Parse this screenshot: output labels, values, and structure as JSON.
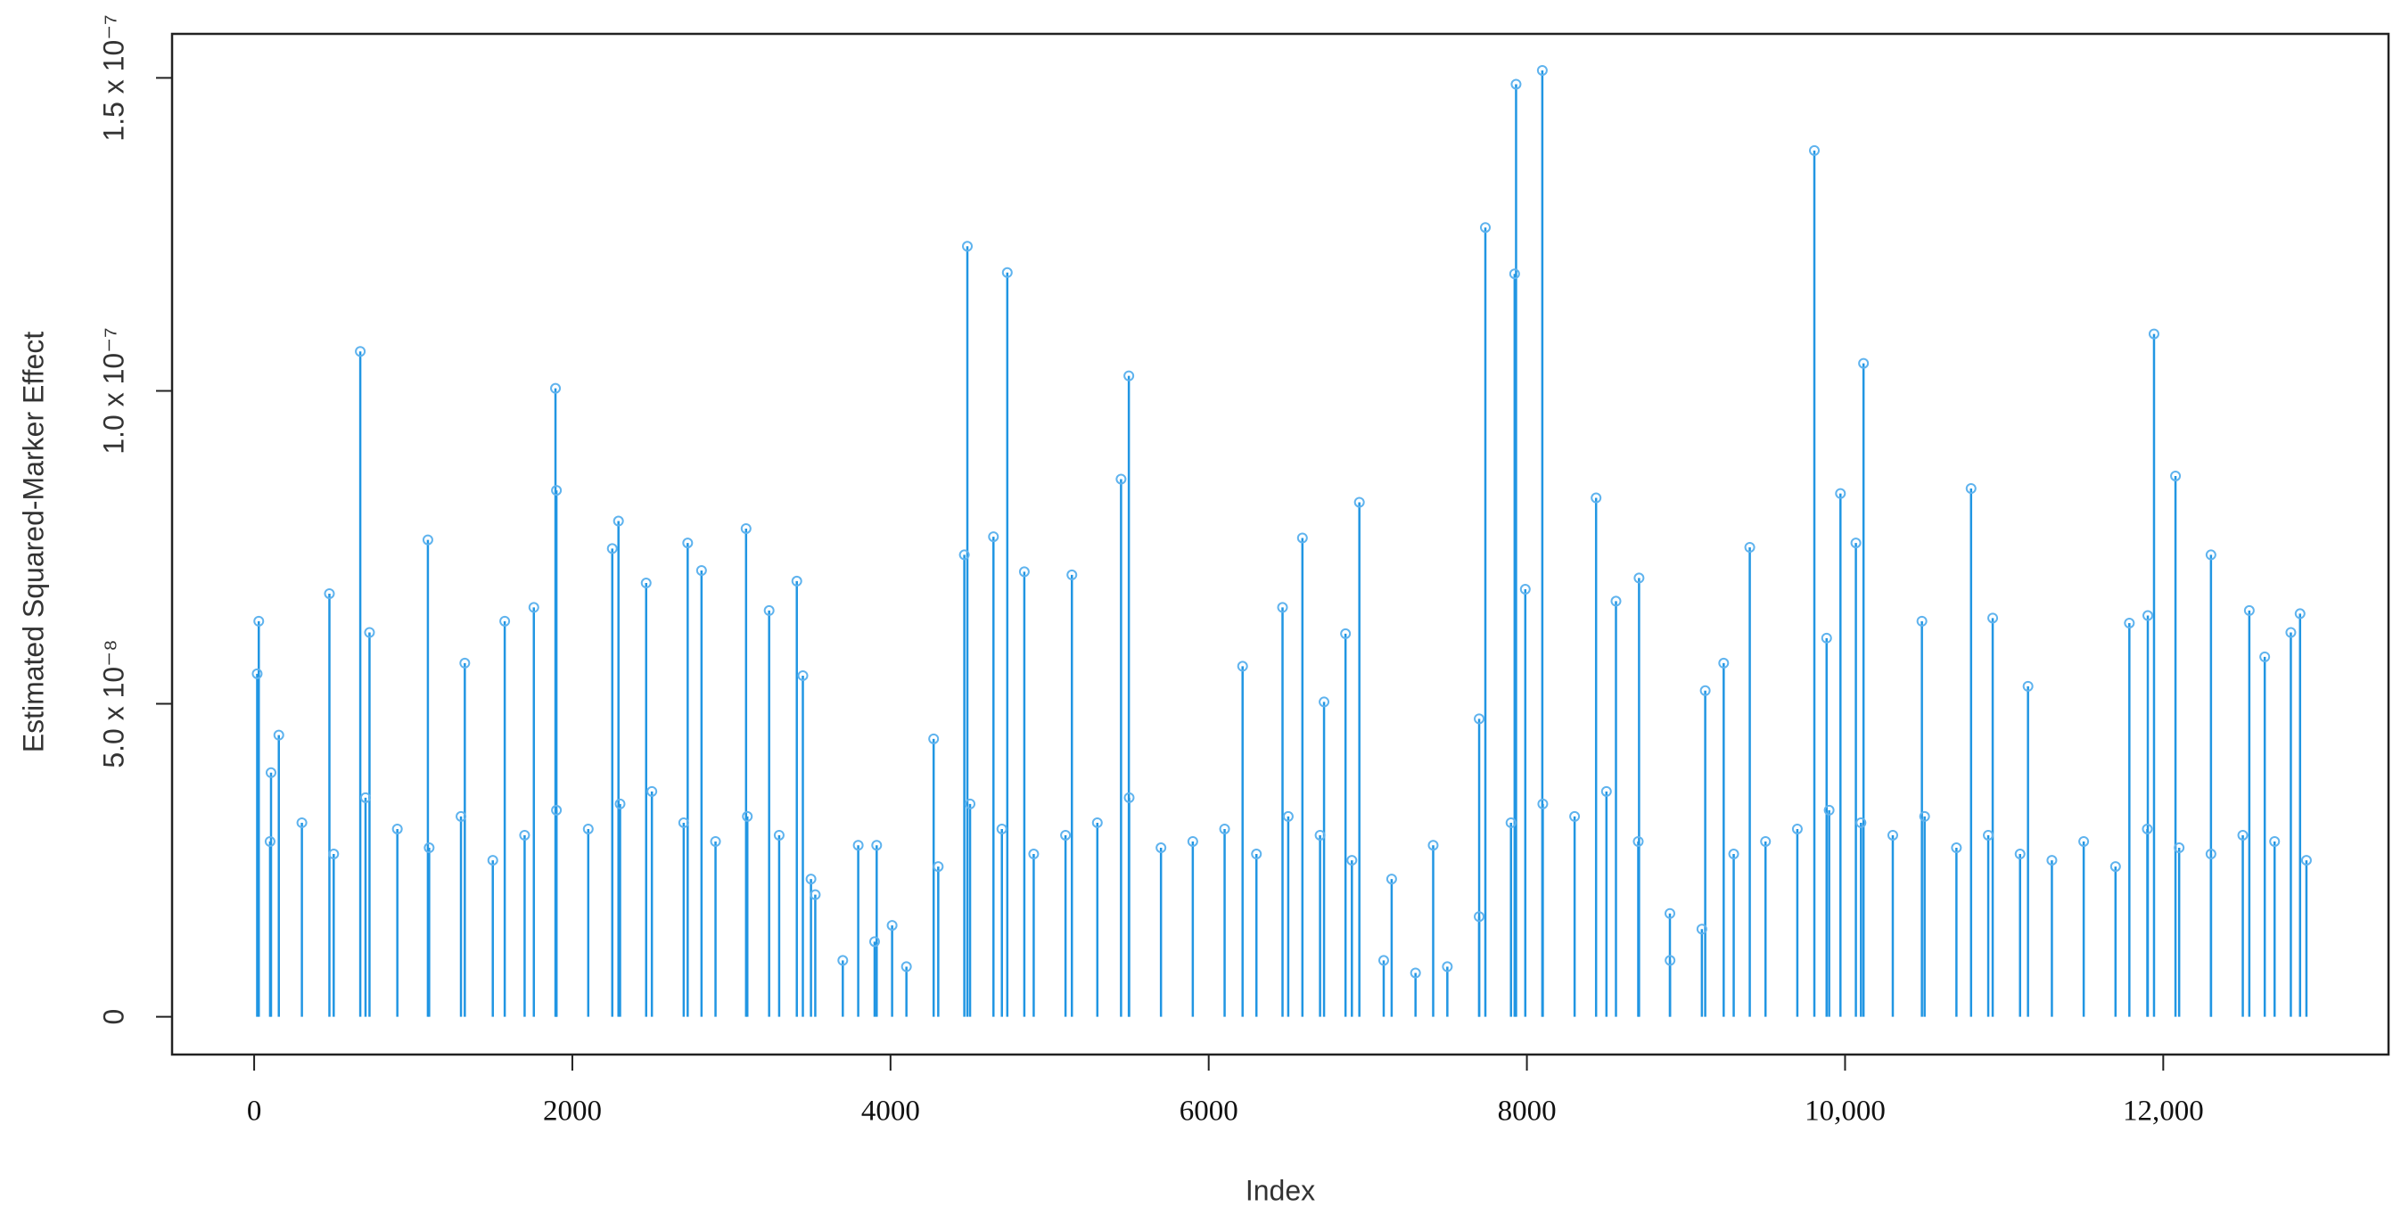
{
  "chart_data": {
    "type": "stem",
    "x_label": "Index",
    "y_label": "Estimated Squared-Marker Effect",
    "color": "#2196e3",
    "marker_color": "#5fb3ee",
    "x": [
      19,
      29,
      106,
      155,
      473,
      667,
      725,
      1092,
      1324,
      1575,
      1758,
      1894,
      1900,
      2251,
      2290,
      2464,
      2725,
      2812,
      3092,
      3237,
      3411,
      3449,
      3527,
      3797,
      3913,
      4010,
      4271,
      4464,
      4483,
      4647,
      4734,
      4841,
      5140,
      5449,
      5498,
      6213,
      6464,
      6589,
      6725,
      6860,
      6947,
      7150,
      7411,
      7700,
      7739,
      7923,
      7932,
      7990,
      8097,
      8435,
      8560,
      8705,
      8899,
      9121,
      9237,
      9401,
      9807,
      9884,
      9971,
      10068,
      10116,
      10483,
      10792,
      10928,
      11150,
      11787,
      11903,
      11942,
      12077,
      12300,
      12541,
      12638,
      12802,
      12860,
      100,
      300,
      500,
      700,
      900,
      1100,
      1300,
      1500,
      1700,
      1900,
      2100,
      2300,
      2500,
      2700,
      2900,
      3100,
      3300,
      3500,
      3700,
      3900,
      4100,
      4300,
      4500,
      4700,
      4900,
      5100,
      5300,
      5500,
      5700,
      5900,
      6100,
      6300,
      6500,
      6700,
      6900,
      7100,
      7300,
      7500,
      7700,
      7900,
      8100,
      8300,
      8500,
      8700,
      8900,
      9100,
      9300,
      9500,
      9700,
      9900,
      10100,
      10300,
      10500,
      10700,
      10900,
      11100,
      11300,
      11500,
      11700,
      11900,
      12100,
      12300,
      12500,
      12700,
      12900
    ],
    "values": [
      5.48e-08,
      6.32e-08,
      3.9e-08,
      4.5e-08,
      6.76e-08,
      1.063e-07,
      6.14e-08,
      7.62e-08,
      5.65e-08,
      6.32e-08,
      6.54e-08,
      1.004e-07,
      8.41e-08,
      7.48e-08,
      7.92e-08,
      6.93e-08,
      7.57e-08,
      7.13e-08,
      7.8e-08,
      6.49e-08,
      6.96e-08,
      5.45e-08,
      1.95e-08,
      2.74e-08,
      2.74e-08,
      1.46e-08,
      4.44e-08,
      7.38e-08,
      1.231e-07,
      7.67e-08,
      1.189e-07,
      7.11e-08,
      7.06e-08,
      8.59e-08,
      1.024e-07,
      5.6e-08,
      6.54e-08,
      7.65e-08,
      5.03e-08,
      6.12e-08,
      8.22e-08,
      2.2e-08,
      2.74e-08,
      4.76e-08,
      1.261e-07,
      1.187e-07,
      1.49e-07,
      6.83e-08,
      1.512e-07,
      8.29e-08,
      6.64e-08,
      7.01e-08,
      1.65e-08,
      5.21e-08,
      5.65e-08,
      7.5e-08,
      1.384e-07,
      6.05e-08,
      8.36e-08,
      7.57e-08,
      1.044e-07,
      6.32e-08,
      8.44e-08,
      6.37e-08,
      5.28e-08,
      6.29e-08,
      6.41e-08,
      1.091e-07,
      8.64e-08,
      7.38e-08,
      6.49e-08,
      5.75e-08,
      6.14e-08,
      6.44e-08,
      2.8e-08,
      3.1e-08,
      2.6e-08,
      3.5e-08,
      3e-08,
      2.7e-08,
      3.2e-08,
      2.5e-08,
      2.9e-08,
      3.3e-08,
      3e-08,
      3.4e-08,
      3.6e-08,
      3.1e-08,
      2.8e-08,
      3.2e-08,
      2.9e-08,
      2.2e-08,
      9e-09,
      1.2e-08,
      8e-09,
      2.4e-08,
      3.4e-08,
      3e-08,
      2.6e-08,
      2.9e-08,
      3.1e-08,
      3.5e-08,
      2.7e-08,
      2.8e-08,
      3e-08,
      2.6e-08,
      3.2e-08,
      2.9e-08,
      2.5e-08,
      9e-09,
      7e-09,
      8e-09,
      1.6e-08,
      3.1e-08,
      3.4e-08,
      3.2e-08,
      3.6e-08,
      2.8e-08,
      9e-09,
      1.4e-08,
      2.6e-08,
      2.8e-08,
      3e-08,
      3.3e-08,
      3.1e-08,
      2.9e-08,
      3.2e-08,
      2.7e-08,
      2.9e-08,
      2.6e-08,
      2.5e-08,
      2.8e-08,
      2.4e-08,
      3e-08,
      2.7e-08,
      2.6e-08,
      2.9e-08,
      2.8e-08,
      2.5e-08
    ],
    "xlim": [
      -516,
      13416
    ],
    "ylim": [
      -6.04e-09,
      1.5704e-07
    ],
    "xticks": [
      0,
      2000,
      4000,
      6000,
      8000,
      {
        "value": 10000,
        "label": "10,000"
      },
      {
        "value": 12000,
        "label": "12,000"
      }
    ],
    "yticks": [
      0,
      {
        "value": 5e-08,
        "label": "5.0 x 10⁻⁸"
      },
      {
        "value": 1e-07,
        "label": "1.0 x 10⁻⁷"
      },
      {
        "value": 1.5e-07,
        "label": "1.5 x 10⁻⁷"
      }
    ]
  }
}
